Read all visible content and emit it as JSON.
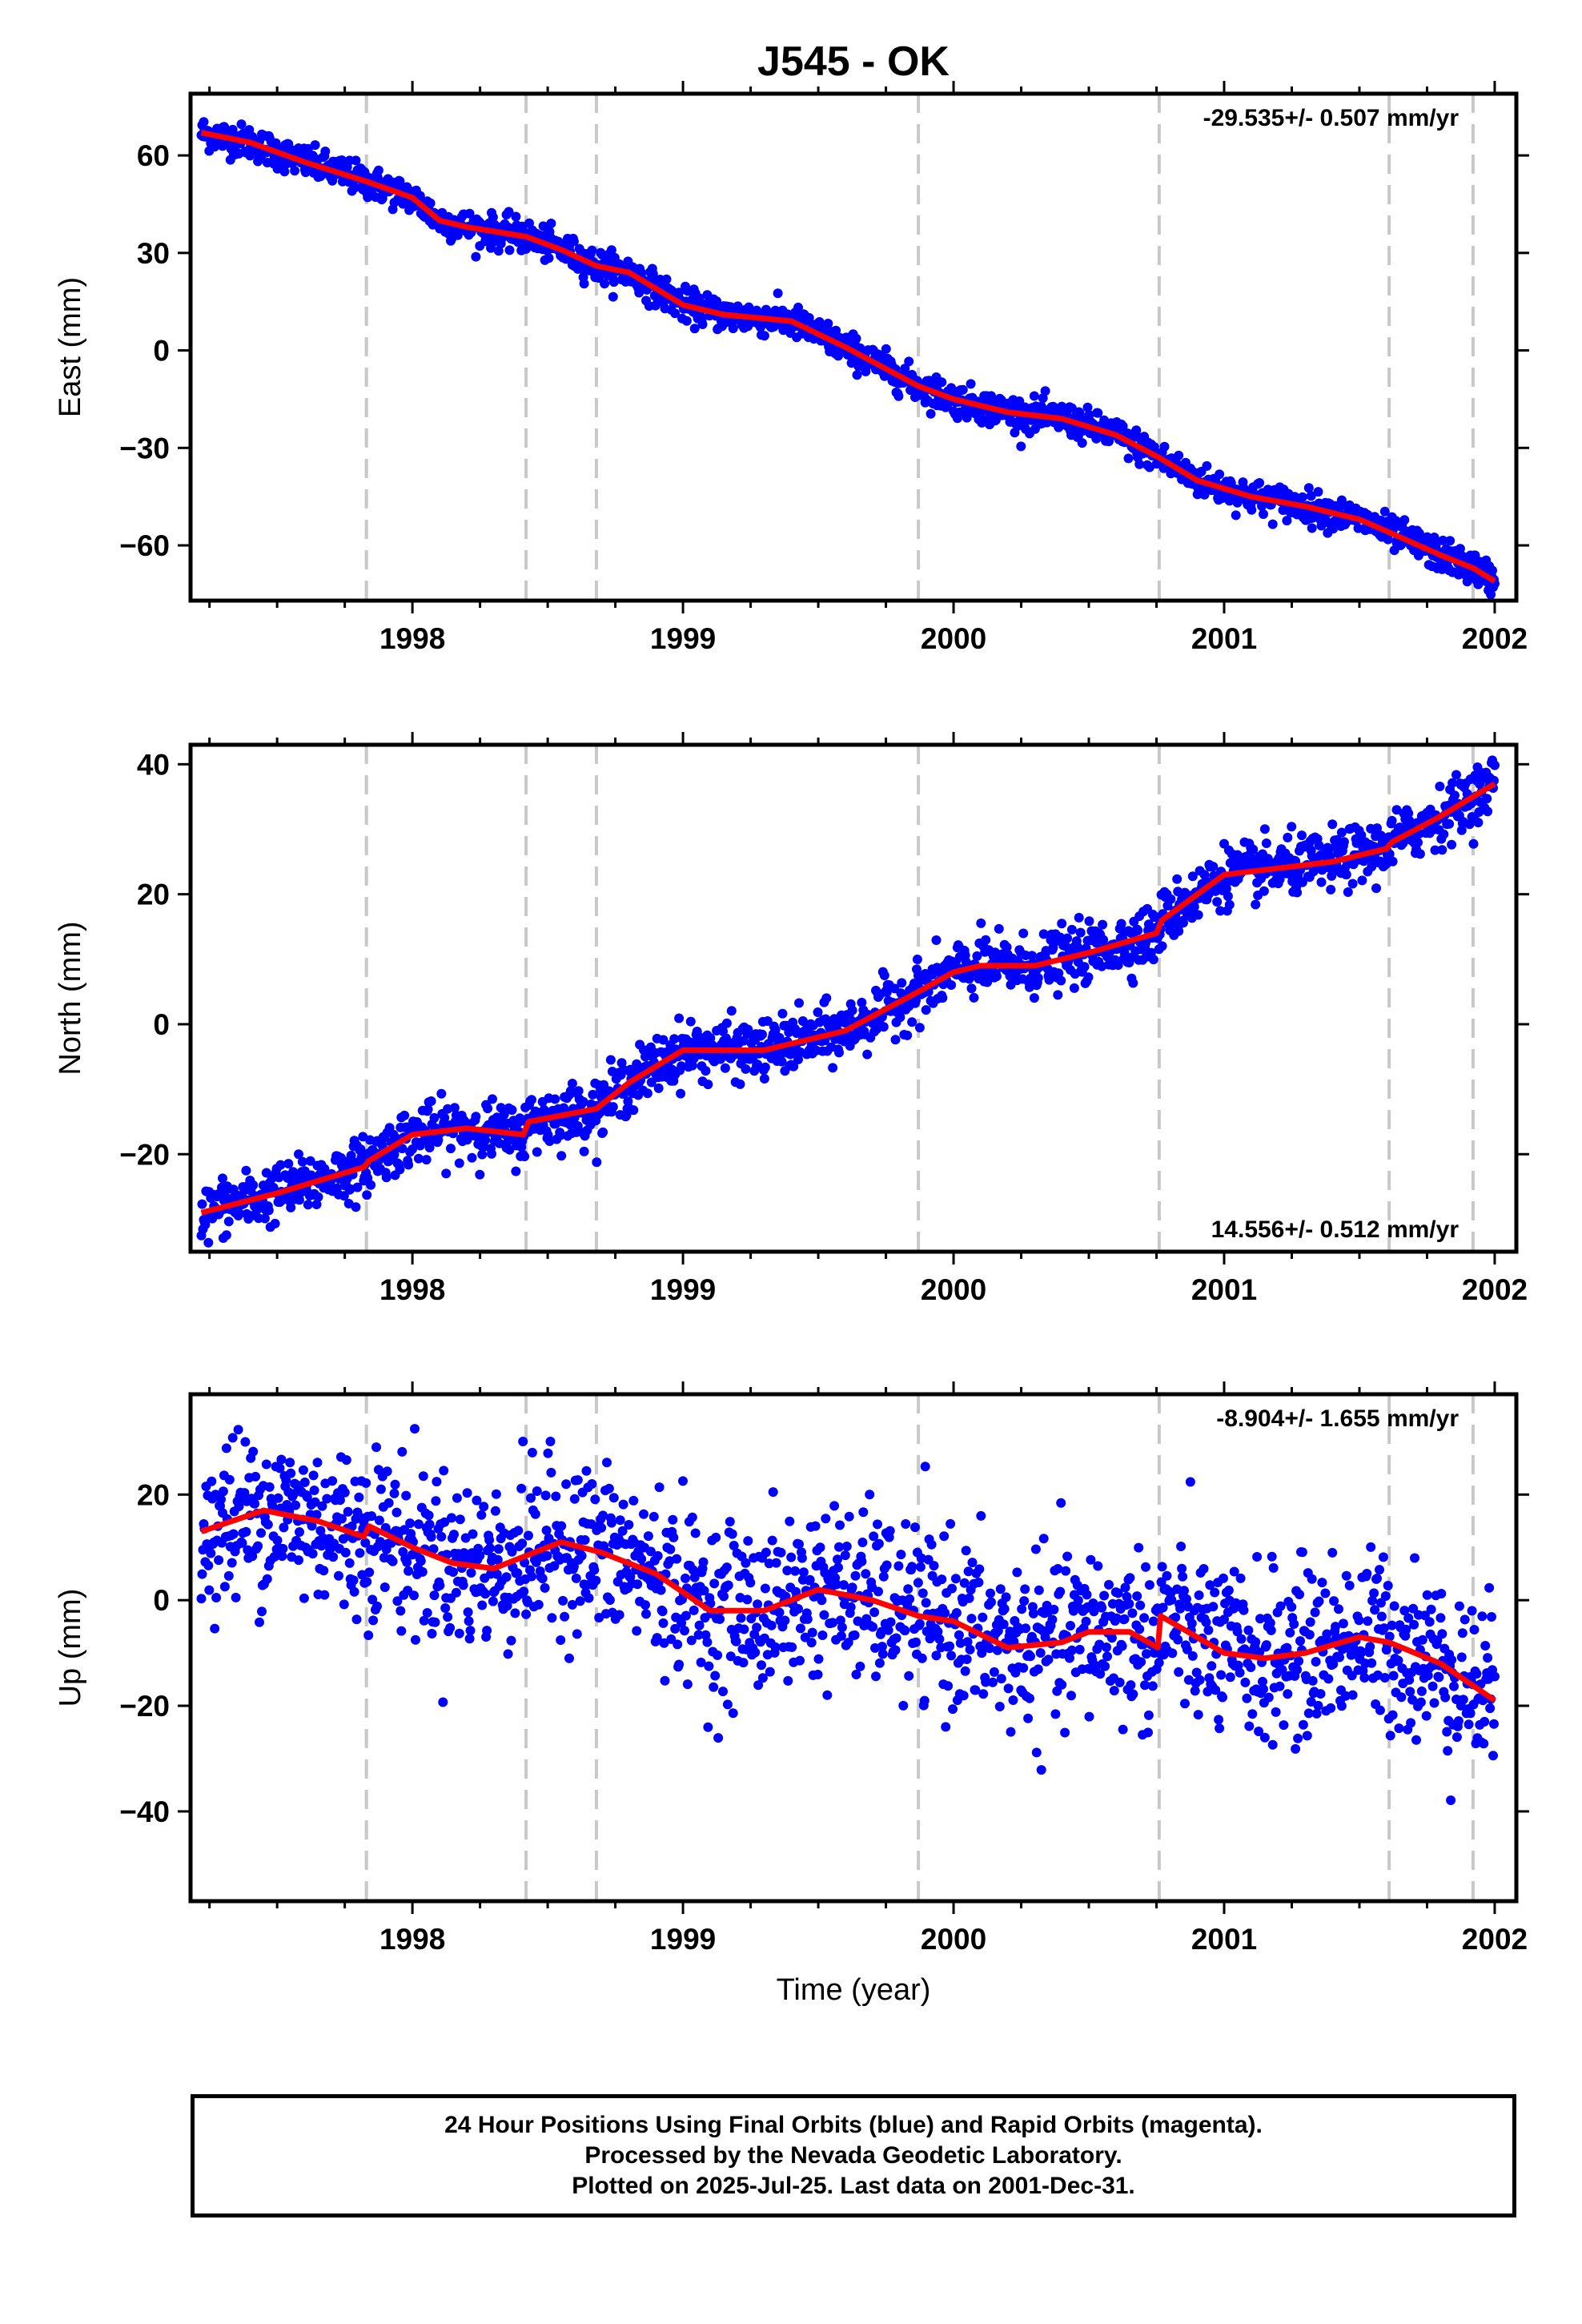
{
  "title": "J545 - OK",
  "colors": {
    "observations": "#0000ff",
    "model": "#ff0000",
    "event_lines": "#c8c8c8",
    "frame": "#000000"
  },
  "x_axis_label": "Time (year)",
  "events": [
    1997.83,
    1998.42,
    1998.68,
    1999.87,
    2000.76,
    2001.61,
    2001.92
  ],
  "chart_data": [
    {
      "type": "scatter",
      "panel": "east",
      "ylabel": "East (mm)",
      "xlim": [
        1997.18,
        2002.08
      ],
      "ylim": [
        -77,
        79
      ],
      "yticks": [
        -60,
        -30,
        0,
        30,
        60
      ],
      "xticks": [
        1998,
        1999,
        2000,
        2001,
        2002
      ],
      "xtick_labels": [
        "1998",
        "1999",
        "2000",
        "2001",
        "2002"
      ],
      "rate_label": "-29.535+/- 0.507 mm/yr",
      "rate_label_position": "top-right",
      "scatter_spread_mm": 2.5,
      "series": [
        {
          "name": "model",
          "x": [
            1997.22,
            1997.4,
            1997.6,
            1997.83,
            1998.0,
            1998.1,
            1998.2,
            1998.42,
            1998.55,
            1998.68,
            1998.8,
            1999.0,
            1999.15,
            1999.4,
            1999.6,
            1999.87,
            2000.0,
            2000.2,
            2000.4,
            2000.6,
            2000.76,
            2000.9,
            2001.1,
            2001.3,
            2001.5,
            2001.61,
            2001.8,
            2001.92,
            2002.0
          ],
          "y": [
            67,
            64,
            58,
            52,
            47,
            40,
            38,
            35,
            31,
            26,
            24,
            14,
            11,
            9,
            1,
            -11,
            -15,
            -19,
            -21,
            -26,
            -33,
            -40,
            -45,
            -48,
            -52,
            -56,
            -63,
            -67,
            -71
          ]
        }
      ]
    },
    {
      "type": "scatter",
      "panel": "north",
      "ylabel": "North (mm)",
      "xlim": [
        1997.18,
        2002.08
      ],
      "ylim": [
        -35,
        43
      ],
      "yticks": [
        -20,
        0,
        20,
        40
      ],
      "xticks": [
        1998,
        1999,
        2000,
        2001,
        2002
      ],
      "xtick_labels": [
        "1998",
        "1999",
        "2000",
        "2001",
        "2002"
      ],
      "rate_label": "14.556+/- 0.512 mm/yr",
      "rate_label_position": "bottom-right",
      "scatter_spread_mm": 2.2,
      "series": [
        {
          "name": "model",
          "x": [
            1997.22,
            1997.5,
            1997.82,
            1997.84,
            1998.0,
            1998.2,
            1998.41,
            1998.43,
            1998.68,
            1998.8,
            1999.0,
            1999.1,
            1999.3,
            1999.6,
            1999.87,
            2000.0,
            2000.1,
            2000.3,
            2000.5,
            2000.75,
            2000.77,
            2001.0,
            2001.2,
            2001.4,
            2001.6,
            2001.62,
            2001.8,
            2001.92,
            2002.0
          ],
          "y": [
            -29,
            -26,
            -22,
            -21,
            -17,
            -16,
            -17,
            -15,
            -13,
            -9,
            -4,
            -4,
            -4,
            -1,
            5,
            8,
            9,
            9,
            11,
            14,
            16,
            23,
            24,
            25,
            27,
            28,
            32,
            35,
            37
          ]
        }
      ]
    },
    {
      "type": "scatter",
      "panel": "up",
      "ylabel": "Up (mm)",
      "xlim": [
        1997.18,
        2002.08
      ],
      "ylim": [
        -57,
        39
      ],
      "yticks": [
        -40,
        -20,
        0,
        20
      ],
      "xticks": [
        1998,
        1999,
        2000,
        2001,
        2002
      ],
      "xtick_labels": [
        "1998",
        "1999",
        "2000",
        "2001",
        "2002"
      ],
      "rate_label": "-8.904+/- 1.655 mm/yr",
      "rate_label_position": "top-right",
      "scatter_spread_mm": 8,
      "series": [
        {
          "name": "model",
          "x": [
            1997.22,
            1997.45,
            1997.65,
            1997.82,
            1997.84,
            1998.0,
            1998.15,
            1998.3,
            1998.45,
            1998.55,
            1998.7,
            1998.9,
            1999.1,
            1999.3,
            1999.5,
            1999.7,
            1999.87,
            2000.0,
            2000.2,
            2000.4,
            2000.5,
            2000.65,
            2000.755,
            2000.765,
            2000.9,
            2001.0,
            2001.15,
            2001.3,
            2001.5,
            2001.61,
            2001.8,
            2002.0
          ],
          "y": [
            13,
            17,
            15,
            12,
            14,
            10,
            7,
            6,
            9,
            11,
            9,
            5,
            -2,
            -2,
            2,
            0,
            -3,
            -4,
            -9,
            -8,
            -6,
            -6,
            -9,
            -3,
            -7,
            -10,
            -11,
            -10,
            -7,
            -8,
            -12,
            -19
          ]
        }
      ]
    }
  ],
  "footer": {
    "line1": "24 Hour Positions Using Final Orbits (blue) and Rapid Orbits (magenta).",
    "line2": "Processed by the Nevada Geodetic Laboratory.",
    "line3": "Plotted on 2025-Jul-25. Last data on 2001-Dec-31."
  }
}
